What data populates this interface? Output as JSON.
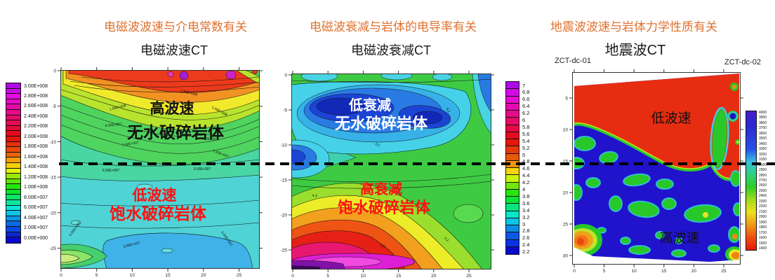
{
  "colors": {
    "heading_orange": "#E07230",
    "annotation_red": "#FF1111",
    "annotation_black": "#111111",
    "annotation_white": "#FFFFFF",
    "dashed_line": "#000000",
    "seismic_gradient": [
      "#4a1ec8",
      "#2a28d0",
      "#2a3cd8",
      "#2850e8",
      "#38c0e0",
      "#30d080",
      "#30cc28",
      "#a0dc20",
      "#eee020",
      "#f09818",
      "#ee5010",
      "#e81800"
    ]
  },
  "panels": [
    {
      "heading": "电磁波波速与介电常数有关",
      "plot_title": "电磁波速CT",
      "upper_zone_line1": "高波速",
      "upper_zone_line2": "无水破碎岩体",
      "lower_zone_line1": "低波速",
      "lower_zone_line2": "饱水破碎岩体",
      "x_ticks": [
        "0",
        "5",
        "10",
        "15",
        "20",
        "25"
      ],
      "y_ticks": [
        "0",
        "-5",
        "-10",
        "-15",
        "-20",
        "-25"
      ],
      "colorbar_labels": [
        "3.00E+008",
        "2.80E+008",
        "2.60E+008",
        "2.40E+008",
        "2.20E+008",
        "2.00E+008",
        "1.80E+008",
        "1.60E+008",
        "1.40E+008",
        "1.20E+008",
        "1.00E+008",
        "8.00E+007",
        "6.00E+007",
        "4.00E+007",
        "2.00E+007",
        "0.00E+000"
      ],
      "contour_labels": [
        "1.50E+008",
        "1.00E+008",
        "1.00E+008",
        "8.00E+007",
        "6.00E+007",
        "7.00E+007",
        "7.00E+007",
        "6.00E+007",
        "9.00E+007",
        "5.00E+007",
        "5.00E+007",
        "5.00E+007"
      ]
    },
    {
      "heading": "电磁波衰减与岩体的电导率有关",
      "plot_title": "电磁波衰减CT",
      "upper_zone_line1": "低衰减",
      "upper_zone_line2": "无水破碎岩体",
      "lower_zone_line1": "高衰减",
      "lower_zone_line2": "饱水破碎岩体",
      "x_ticks": [
        "0",
        "5",
        "10",
        "15",
        "20",
        "25"
      ],
      "y_ticks": [
        "0",
        "-5",
        "-10",
        "-15",
        "-20",
        "-25"
      ],
      "colorbar_labels": [
        "7",
        "6.8",
        "6.6",
        "6.4",
        "6.2",
        "6",
        "5.8",
        "5.6",
        "5.4",
        "5.2",
        "5",
        "4.8",
        "4.6",
        "4.4",
        "4.2",
        "4",
        "3.8",
        "3.6",
        "3.4",
        "3.2",
        "3",
        "2.8",
        "2.6",
        "2.4",
        "2.2"
      ],
      "contour_labels": [
        "3.2",
        "3.2",
        "3.2",
        "4.2",
        "5.2",
        "4.2"
      ]
    },
    {
      "heading": "地震波波速与岩体力学性质有关",
      "plot_title": "地震波CT",
      "borehole_left": "ZCT-dc-01",
      "borehole_right": "ZCT-dc-02",
      "upper_zone": "低波速",
      "lower_zone": "高波速",
      "x_ticks": [
        "0",
        "5",
        "10",
        "15",
        "20",
        "25"
      ],
      "y_ticks": [
        "5",
        "10",
        "15",
        "20",
        "25",
        "30"
      ],
      "colorbar_labels": [
        "4000",
        "3900",
        "3800",
        "3700",
        "3600",
        "3500",
        "3400",
        "3300",
        "3200",
        "3100",
        "3000",
        "2900",
        "2800",
        "2700",
        "2600",
        "2500",
        "2400",
        "2300",
        "2200",
        "2100",
        "2000",
        "1900",
        "1800",
        "1700",
        "1600",
        "1500",
        "1400"
      ]
    }
  ],
  "chart_data": [
    {
      "type": "heatmap",
      "title": "电磁波速CT",
      "subject": "电磁波波速与介电常数有关",
      "x_axis": {
        "range": [
          0,
          28
        ],
        "ticks": [
          0,
          5,
          10,
          15,
          20,
          25
        ]
      },
      "y_axis": {
        "range": [
          0,
          -28
        ],
        "ticks": [
          0,
          -5,
          -10,
          -15,
          -20,
          -25
        ]
      },
      "colorbar": {
        "position": "left",
        "min": 0,
        "max": 300000000,
        "tick_step": 20000000,
        "scheme": "rainbow, purple=3.00E+008 (high) to dark blue=0.00E+000 (low)"
      },
      "zones": [
        {
          "annotation": "高波速 无水破碎岩体",
          "depth_range": [
            0,
            -13
          ],
          "value_hint": "7E+007 to 3E+008, red/orange near surface, green mid"
        },
        {
          "annotation": "低波速 饱水破碎岩体",
          "depth_range": [
            -13,
            -28
          ],
          "value_hint": "4E+007 to 6E+007, cyan/blue"
        }
      ],
      "dashed_boundary_depth": -13
    },
    {
      "type": "heatmap",
      "title": "电磁波衰减CT",
      "subject": "电磁波衰减与岩体的电导率有关",
      "x_axis": {
        "range": [
          0,
          28
        ],
        "ticks": [
          0,
          5,
          10,
          15,
          20,
          25
        ]
      },
      "y_axis": {
        "range": [
          0,
          -28
        ],
        "ticks": [
          0,
          -5,
          -10,
          -15,
          -20,
          -25
        ]
      },
      "colorbar": {
        "position": "right",
        "min": 2.2,
        "max": 7,
        "tick_step": 0.2,
        "scheme": "rainbow, purple=7 (high) to dark blue=2.2 (low)"
      },
      "zones": [
        {
          "annotation": "低衰减 无水破碎岩体",
          "depth_range": [
            0,
            -13
          ],
          "value_hint": "2.2 to 3.2, deep blue core"
        },
        {
          "annotation": "高衰减 饱水破碎岩体",
          "depth_range": [
            -13,
            -28
          ],
          "value_hint": "4.2 to 7, yellow-orange-red-magenta toward bottom"
        }
      ],
      "dashed_boundary_depth": -13
    },
    {
      "type": "heatmap",
      "title": "地震波CT",
      "subject": "地震波波速与岩体力学性质有关",
      "boreholes": [
        "ZCT-dc-01",
        "ZCT-dc-02"
      ],
      "x_axis": {
        "range": [
          0,
          28
        ],
        "ticks": [
          0,
          5,
          10,
          15,
          20,
          25
        ]
      },
      "y_axis": {
        "range": [
          0,
          31
        ],
        "ticks": [
          5,
          10,
          15,
          20,
          25,
          30
        ]
      },
      "colorbar": {
        "position": "right",
        "min": 1400,
        "max": 4000,
        "tick_step": 100,
        "scheme": "blue=4000 (high) to red=1400 (low)"
      },
      "zones": [
        {
          "annotation": "低波速",
          "depth_range": [
            2,
            9
          ],
          "value_hint": "1400-1800, red region near surface"
        },
        {
          "annotation": "高波速",
          "depth_range": [
            14,
            31
          ],
          "value_hint": "3200-4000, dark blue with green patches"
        }
      ],
      "dashed_boundary_depth": 14.5
    }
  ]
}
